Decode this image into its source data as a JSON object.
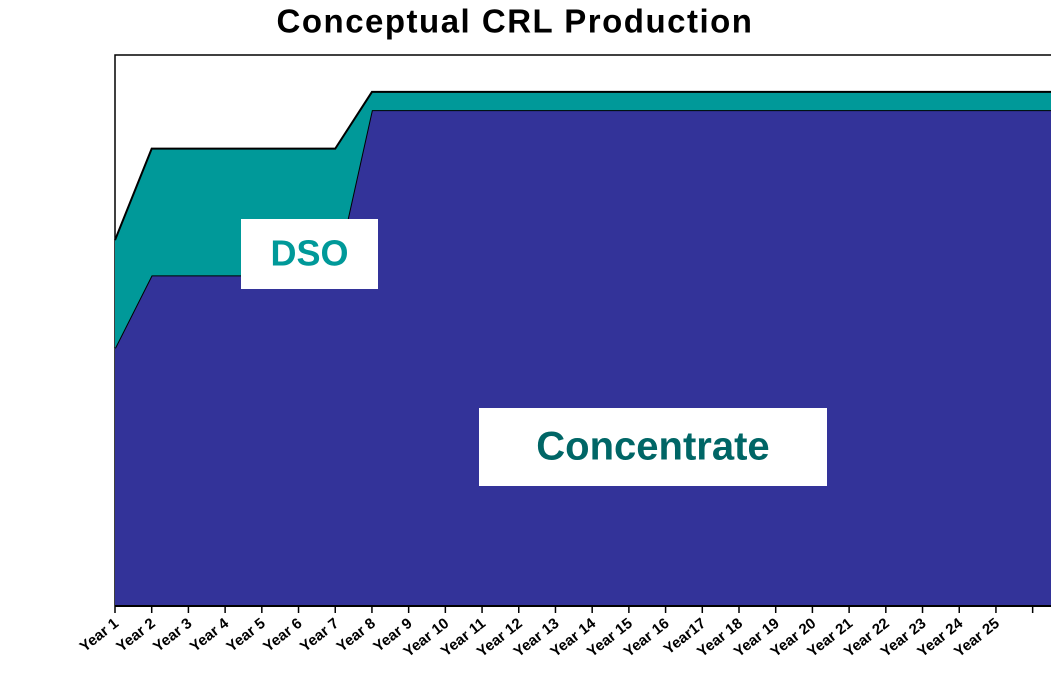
{
  "chart_data": {
    "type": "area",
    "stacked": true,
    "title": "Conceptual CRL Production",
    "categories": [
      "Year 1",
      "Year 2",
      "Year 3",
      "Year 4",
      "Year 5",
      "Year 6",
      "Year 7",
      "Year 8",
      "Year 9",
      "Year 10",
      "Year 11",
      "Year 12",
      "Year 13",
      "Year 14",
      "Year 15",
      "Year 16",
      "Year17",
      "Year 18",
      "Year 19",
      "Year 20",
      "Year 21",
      "Year 22",
      "Year 23",
      "Year 24",
      "Year 25",
      null
    ],
    "series": [
      {
        "name": "Concentrate",
        "color": "#333399",
        "values": [
          46.8,
          60,
          60,
          60,
          60,
          60,
          60,
          90,
          90,
          90,
          90,
          90,
          90,
          90,
          90,
          90,
          90,
          90,
          90,
          90,
          90,
          90,
          90,
          90,
          90,
          90
        ]
      },
      {
        "name": "DSO",
        "color": "#009999",
        "values": [
          19.6,
          23,
          23,
          23,
          23,
          23,
          23,
          3.3,
          3.3,
          3.3,
          3.3,
          3.3,
          3.3,
          3.3,
          3.3,
          3.3,
          3.3,
          3.3,
          3.3,
          3.3,
          3.3,
          3.3,
          3.3,
          3.3,
          3.3,
          3.3
        ]
      }
    ],
    "series_label_colors": [
      "#006666",
      "#009999"
    ],
    "ylim": [
      0,
      100
    ]
  }
}
